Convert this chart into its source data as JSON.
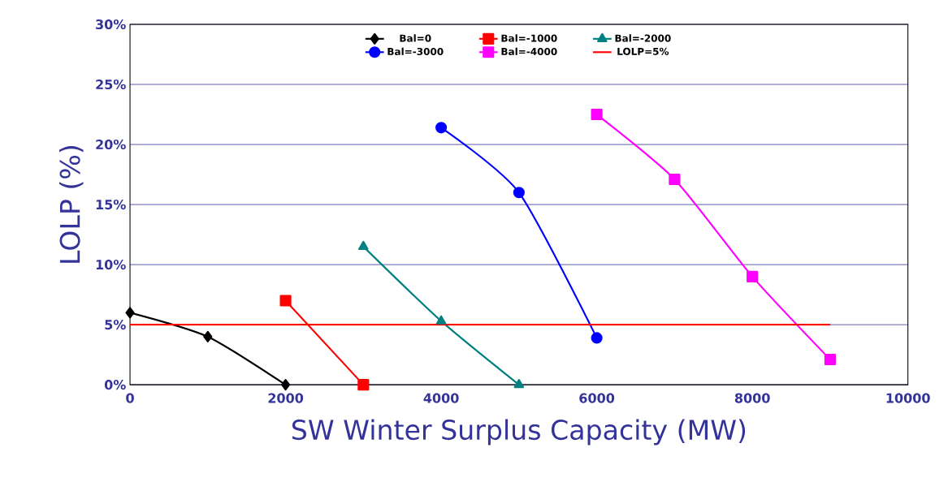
{
  "chart_data": {
    "type": "line",
    "xlabel": "SW  Winter Surplus Capacity (MW)",
    "ylabel": "LOLP (%)",
    "xlim": [
      0,
      10000
    ],
    "xticks": [
      0,
      2000,
      4000,
      6000,
      8000,
      10000
    ],
    "ylim": [
      0,
      30
    ],
    "yticks": [
      {
        "value": 0,
        "label": "0%"
      },
      {
        "value": 5,
        "label": "5%"
      },
      {
        "value": 10,
        "label": "10%"
      },
      {
        "value": 15,
        "label": "15%"
      },
      {
        "value": 20,
        "label": "20%"
      },
      {
        "value": 25,
        "label": "25%"
      },
      {
        "value": 30,
        "label": "30%"
      }
    ],
    "grid": "y",
    "legend": "top",
    "series": [
      {
        "name": "Bal=0",
        "color": "#000000",
        "marker": "diamond",
        "x": [
          0,
          1000,
          2000
        ],
        "values": [
          6.0,
          4.0,
          0.0
        ]
      },
      {
        "name": "Bal=-1000",
        "color": "#ff0000",
        "marker": "square",
        "x": [
          2000,
          3000
        ],
        "values": [
          7.0,
          0.0
        ]
      },
      {
        "name": "Bal=-2000",
        "color": "#008080",
        "marker": "triangle",
        "x": [
          3000,
          4000,
          5000
        ],
        "values": [
          11.5,
          5.3,
          0.0
        ]
      },
      {
        "name": "Bal=-3000",
        "color": "#0000ff",
        "marker": "circle",
        "x": [
          4000,
          5000,
          6000
        ],
        "values": [
          21.4,
          16.0,
          3.9
        ]
      },
      {
        "name": "Bal=-4000",
        "color": "#ff00ff",
        "marker": "square",
        "x": [
          6000,
          7000,
          8000,
          9000
        ],
        "values": [
          22.5,
          17.1,
          9.0,
          2.1
        ]
      },
      {
        "name": "LOLP=5%",
        "color": "#ff0000",
        "marker": "none",
        "x": [
          0,
          9000
        ],
        "values": [
          5,
          5
        ]
      }
    ]
  }
}
